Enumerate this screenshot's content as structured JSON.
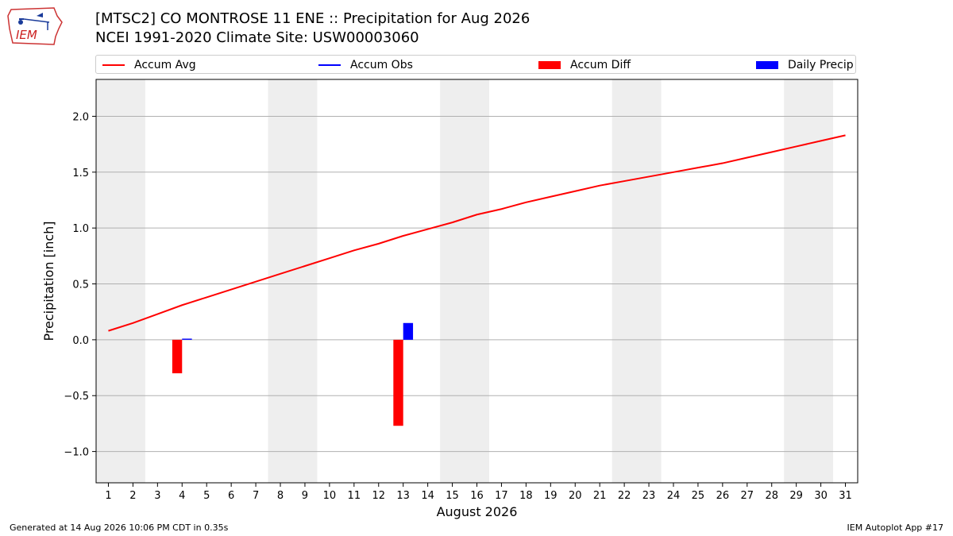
{
  "logo": {
    "text": "IEM"
  },
  "header": {
    "title": "[MTSC2] CO MONTROSE 11 ENE :: Precipitation for Aug 2026",
    "subtitle": "NCEI 1991-2020 Climate Site: USW00003060"
  },
  "footer": {
    "generated": "Generated at 14 Aug 2026 10:06 PM CDT in 0.35s",
    "app": "IEM Autoplot App #17"
  },
  "colors": {
    "avg": "#ff0000",
    "obs": "#0000ff",
    "diff": "#ff0000",
    "daily": "#0000ff",
    "weekend": "#eeeeee",
    "grid": "#b0b0b0"
  },
  "chart_data": {
    "type": "bar",
    "xlabel": "August 2026",
    "ylabel": "Precipitation [inch]",
    "xlim": [
      0.5,
      31.5
    ],
    "ylim": [
      -1.28,
      2.33
    ],
    "yticks": [
      -1.0,
      -0.5,
      0.0,
      0.5,
      1.0,
      1.5,
      2.0
    ],
    "ytick_labels": [
      "−1.0",
      "−0.5",
      "0.0",
      "0.5",
      "1.0",
      "1.5",
      "2.0"
    ],
    "days": [
      1,
      2,
      3,
      4,
      5,
      6,
      7,
      8,
      9,
      10,
      11,
      12,
      13,
      14,
      15,
      16,
      17,
      18,
      19,
      20,
      21,
      22,
      23,
      24,
      25,
      26,
      27,
      28,
      29,
      30,
      31
    ],
    "weekend_spans": [
      [
        0.5,
        2.5
      ],
      [
        7.5,
        9.5
      ],
      [
        14.5,
        16.5
      ],
      [
        21.5,
        23.5
      ],
      [
        28.5,
        30.5
      ]
    ],
    "legend": [
      {
        "label": "Accum Avg",
        "kind": "line",
        "color": "#ff0000"
      },
      {
        "label": "Accum Obs",
        "kind": "line",
        "color": "#0000ff"
      },
      {
        "label": "Accum Diff",
        "kind": "box",
        "color": "#ff0000"
      },
      {
        "label": "Daily Precip",
        "kind": "box",
        "color": "#0000ff"
      }
    ],
    "series": [
      {
        "name": "Accum Avg",
        "type": "line",
        "x": [
          1,
          2,
          3,
          4,
          5,
          6,
          7,
          8,
          9,
          10,
          11,
          12,
          13,
          14,
          15,
          16,
          17,
          18,
          19,
          20,
          21,
          22,
          23,
          24,
          25,
          26,
          27,
          28,
          29,
          30,
          31
        ],
        "values": [
          0.08,
          0.15,
          0.23,
          0.31,
          0.38,
          0.45,
          0.52,
          0.59,
          0.66,
          0.73,
          0.8,
          0.86,
          0.93,
          0.99,
          1.05,
          1.12,
          1.17,
          1.23,
          1.28,
          1.33,
          1.38,
          1.42,
          1.46,
          1.5,
          1.54,
          1.58,
          1.63,
          1.68,
          1.73,
          1.78,
          1.83
        ]
      },
      {
        "name": "Accum Diff",
        "type": "bar",
        "x": [
          4,
          13
        ],
        "values": [
          -0.3,
          -0.77
        ]
      },
      {
        "name": "Daily Precip",
        "type": "bar",
        "x": [
          4,
          13
        ],
        "values": [
          0.01,
          0.15
        ]
      }
    ]
  }
}
